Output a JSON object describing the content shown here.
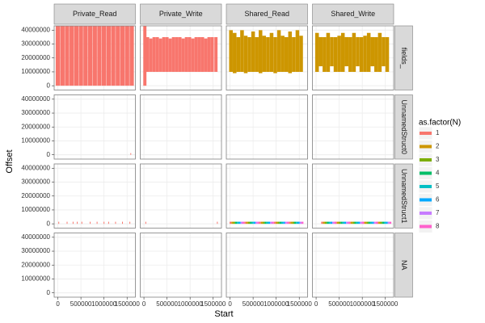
{
  "chart_data": {
    "type": "facet_segment",
    "x_label": "Start",
    "y_label": "Offset",
    "col_labels": [
      "Private_Read",
      "Private_Write",
      "Shared_Read",
      "Shared_Write"
    ],
    "row_labels": [
      "fields_",
      "UnnamedStruct0",
      "UnnamedStruct1",
      "NA"
    ],
    "xlim": [
      -80000,
      1680000
    ],
    "ylim": [
      -3100000,
      43100000
    ],
    "xticks": [
      0,
      500000,
      1000000,
      1500000
    ],
    "yticks": [
      0,
      10000000,
      20000000,
      30000000,
      40000000
    ],
    "grid": true,
    "legend": {
      "title": "as.factor(N)",
      "levels": [
        1,
        2,
        3,
        4,
        5,
        6,
        7,
        8
      ],
      "colors": [
        "#F8766D",
        "#CD9600",
        "#7CAE00",
        "#00BE67",
        "#00BFC4",
        "#00A9FF",
        "#C77CFF",
        "#FF61CC"
      ]
    },
    "panels": [
      [
        [
          {
            "n": 1,
            "x": [
              0,
              100000,
              200000,
              300000,
              400000,
              500000,
              600000,
              700000,
              800000,
              900000,
              1000000,
              1100000,
              1200000,
              1300000,
              1400000,
              1500000,
              1600000
            ],
            "ymin": [
              0,
              0,
              0,
              0,
              0,
              0,
              0,
              0,
              0,
              0,
              0,
              0,
              0,
              0,
              0,
              0,
              0
            ],
            "ymax": [
              43000000,
              43000000,
              43000000,
              43000000,
              43000000,
              43000000,
              43000000,
              43000000,
              43000000,
              43000000,
              43000000,
              43000000,
              43000000,
              43000000,
              43000000,
              43000000,
              43000000
            ]
          }
        ],
        [
          {
            "n": 1,
            "x": [
              20000,
              80000,
              150000,
              220000,
              290000,
              360000,
              430000,
              500000,
              570000,
              640000,
              710000,
              780000,
              850000,
              920000,
              990000,
              1060000,
              1130000,
              1200000,
              1270000,
              1340000,
              1410000,
              1480000,
              1560000
            ],
            "ymin": [
              0,
              10000000,
              10000000,
              10000000,
              10000000,
              10000000,
              10000000,
              10000000,
              10000000,
              10000000,
              10000000,
              10000000,
              10000000,
              10000000,
              10000000,
              10000000,
              10000000,
              10000000,
              10000000,
              10000000,
              10000000,
              10000000,
              10000000
            ],
            "ymax": [
              43000000,
              35000000,
              34000000,
              35000000,
              35000000,
              34000000,
              35000000,
              35000000,
              34000000,
              35000000,
              35000000,
              35000000,
              34000000,
              35000000,
              35000000,
              34000000,
              35000000,
              35000000,
              35000000,
              34000000,
              35000000,
              35000000,
              35000000
            ]
          }
        ],
        [
          {
            "n": 2,
            "x": [
              20000,
              100000,
              180000,
              260000,
              340000,
              420000,
              500000,
              580000,
              660000,
              740000,
              820000,
              900000,
              980000,
              1060000,
              1140000,
              1220000,
              1300000,
              1380000,
              1460000,
              1540000
            ],
            "ymin": [
              10000000,
              9000000,
              10000000,
              10000000,
              9000000,
              10000000,
              10000000,
              10000000,
              9000000,
              10000000,
              10000000,
              10000000,
              9000000,
              10000000,
              10000000,
              10000000,
              9000000,
              10000000,
              10000000,
              10000000
            ],
            "ymax": [
              40000000,
              38000000,
              35000000,
              40000000,
              36000000,
              35000000,
              39000000,
              35000000,
              40000000,
              36000000,
              35000000,
              38000000,
              35000000,
              40000000,
              36000000,
              35000000,
              39000000,
              35000000,
              40000000,
              36000000
            ]
          }
        ],
        [
          {
            "n": 2,
            "x": [
              20000,
              100000,
              180000,
              260000,
              340000,
              420000,
              500000,
              580000,
              660000,
              740000,
              820000,
              900000,
              980000,
              1060000,
              1140000,
              1220000,
              1300000,
              1380000,
              1460000,
              1540000
            ],
            "ymin": [
              10000000,
              14000000,
              10000000,
              10000000,
              14000000,
              10000000,
              10000000,
              10000000,
              14000000,
              10000000,
              10000000,
              14000000,
              10000000,
              10000000,
              10000000,
              14000000,
              10000000,
              10000000,
              14000000,
              10000000
            ],
            "ymax": [
              38000000,
              35000000,
              35000000,
              38000000,
              35000000,
              35000000,
              36000000,
              38000000,
              35000000,
              35000000,
              38000000,
              35000000,
              35000000,
              36000000,
              38000000,
              35000000,
              35000000,
              38000000,
              35000000,
              35000000
            ]
          }
        ]
      ],
      [
        [
          {
            "n": 1,
            "x": [
              1580000
            ],
            "ymin": [
              0
            ],
            "ymax": [
              1200000
            ]
          }
        ],
        [],
        [],
        []
      ],
      [
        [
          {
            "n": 1,
            "x": [
              20000,
              200000,
              330000,
              420000,
              520000,
              700000,
              850000,
              1000000,
              1100000,
              1250000,
              1400000,
              1560000
            ],
            "ymin": [
              0,
              0,
              0,
              0,
              0,
              0,
              0,
              0,
              0,
              0,
              0,
              0
            ],
            "ymax": [
              1500000,
              1500000,
              1500000,
              1500000,
              1500000,
              1500000,
              1500000,
              1500000,
              1500000,
              1500000,
              1500000,
              1500000
            ]
          }
        ],
        [
          {
            "n": 1,
            "x": [
              40000,
              1590000
            ],
            "ymin": [
              0,
              0
            ],
            "ymax": [
              1500000,
              1500000
            ]
          }
        ],
        [
          {
            "n": 1,
            "x": [
              10000,
              330000,
              650000,
              970000,
              1290000
            ],
            "ymin": [
              0,
              0,
              0,
              0,
              0
            ],
            "ymax": [
              1500000,
              1500000,
              1500000,
              1500000,
              1500000
            ]
          },
          {
            "n": 2,
            "x": [
              50000,
              370000,
              690000,
              1010000,
              1330000
            ],
            "ymin": [
              0,
              0,
              0,
              0,
              0
            ],
            "ymax": [
              1500000,
              1500000,
              1500000,
              1500000,
              1500000
            ]
          },
          {
            "n": 3,
            "x": [
              90000,
              410000,
              730000,
              1050000,
              1370000
            ],
            "ymin": [
              0,
              0,
              0,
              0,
              0
            ],
            "ymax": [
              1500000,
              1500000,
              1500000,
              1500000,
              1500000
            ]
          },
          {
            "n": 4,
            "x": [
              130000,
              450000,
              770000,
              1090000,
              1410000
            ],
            "ymin": [
              0,
              0,
              0,
              0,
              0
            ],
            "ymax": [
              1500000,
              1500000,
              1500000,
              1500000,
              1500000
            ]
          },
          {
            "n": 5,
            "x": [
              170000,
              490000,
              810000,
              1130000,
              1450000
            ],
            "ymin": [
              0,
              0,
              0,
              0,
              0
            ],
            "ymax": [
              1500000,
              1500000,
              1500000,
              1500000,
              1500000
            ]
          },
          {
            "n": 6,
            "x": [
              210000,
              530000,
              850000,
              1170000,
              1490000
            ],
            "ymin": [
              0,
              0,
              0,
              0,
              0
            ],
            "ymax": [
              1500000,
              1500000,
              1500000,
              1500000,
              1500000
            ]
          },
          {
            "n": 7,
            "x": [
              250000,
              570000,
              890000,
              1210000,
              1530000
            ],
            "ymin": [
              0,
              0,
              0,
              0,
              0
            ],
            "ymax": [
              1500000,
              1500000,
              1500000,
              1500000,
              1500000
            ]
          },
          {
            "n": 8,
            "x": [
              290000,
              610000,
              930000,
              1250000,
              1570000
            ],
            "ymin": [
              0,
              0,
              0,
              0,
              0
            ],
            "ymax": [
              1500000,
              1500000,
              1500000,
              1500000,
              1500000
            ]
          }
        ],
        [
          {
            "n": 1,
            "x": [
              130000,
              430000,
              730000,
              1030000,
              1330000
            ],
            "ymin": [
              0,
              0,
              0,
              0,
              0
            ],
            "ymax": [
              1500000,
              1500000,
              1500000,
              1500000,
              1500000
            ]
          },
          {
            "n": 2,
            "x": [
              170000,
              470000,
              770000,
              1070000,
              1370000
            ],
            "ymin": [
              0,
              0,
              0,
              0,
              0
            ],
            "ymax": [
              1500000,
              1500000,
              1500000,
              1500000,
              1500000
            ]
          },
          {
            "n": 3,
            "x": [
              210000,
              510000,
              810000,
              1110000,
              1410000
            ],
            "ymin": [
              0,
              0,
              0,
              0,
              0
            ],
            "ymax": [
              1500000,
              1500000,
              1500000,
              1500000,
              1500000
            ]
          },
          {
            "n": 4,
            "x": [
              250000,
              550000,
              850000,
              1150000,
              1450000
            ],
            "ymin": [
              0,
              0,
              0,
              0,
              0
            ],
            "ymax": [
              1500000,
              1500000,
              1500000,
              1500000,
              1500000
            ]
          },
          {
            "n": 5,
            "x": [
              290000,
              590000,
              890000,
              1190000,
              1490000
            ],
            "ymin": [
              0,
              0,
              0,
              0,
              0
            ],
            "ymax": [
              1500000,
              1500000,
              1500000,
              1500000,
              1500000
            ]
          },
          {
            "n": 6,
            "x": [
              330000,
              630000,
              930000,
              1230000,
              1530000
            ],
            "ymin": [
              0,
              0,
              0,
              0,
              0
            ],
            "ymax": [
              1500000,
              1500000,
              1500000,
              1500000,
              1500000
            ]
          },
          {
            "n": 7,
            "x": [
              370000,
              670000,
              970000,
              1270000,
              1570000
            ],
            "ymin": [
              0,
              0,
              0,
              0,
              0
            ],
            "ymax": [
              1500000,
              1500000,
              1500000,
              1500000,
              1500000
            ]
          },
          {
            "n": 8,
            "x": [
              410000,
              710000,
              1010000,
              1310000,
              1610000
            ],
            "ymin": [
              0,
              0,
              0,
              0,
              0
            ],
            "ymax": [
              1500000,
              1500000,
              1500000,
              1500000,
              1500000
            ]
          }
        ]
      ],
      [
        [],
        [],
        [],
        []
      ]
    ]
  }
}
